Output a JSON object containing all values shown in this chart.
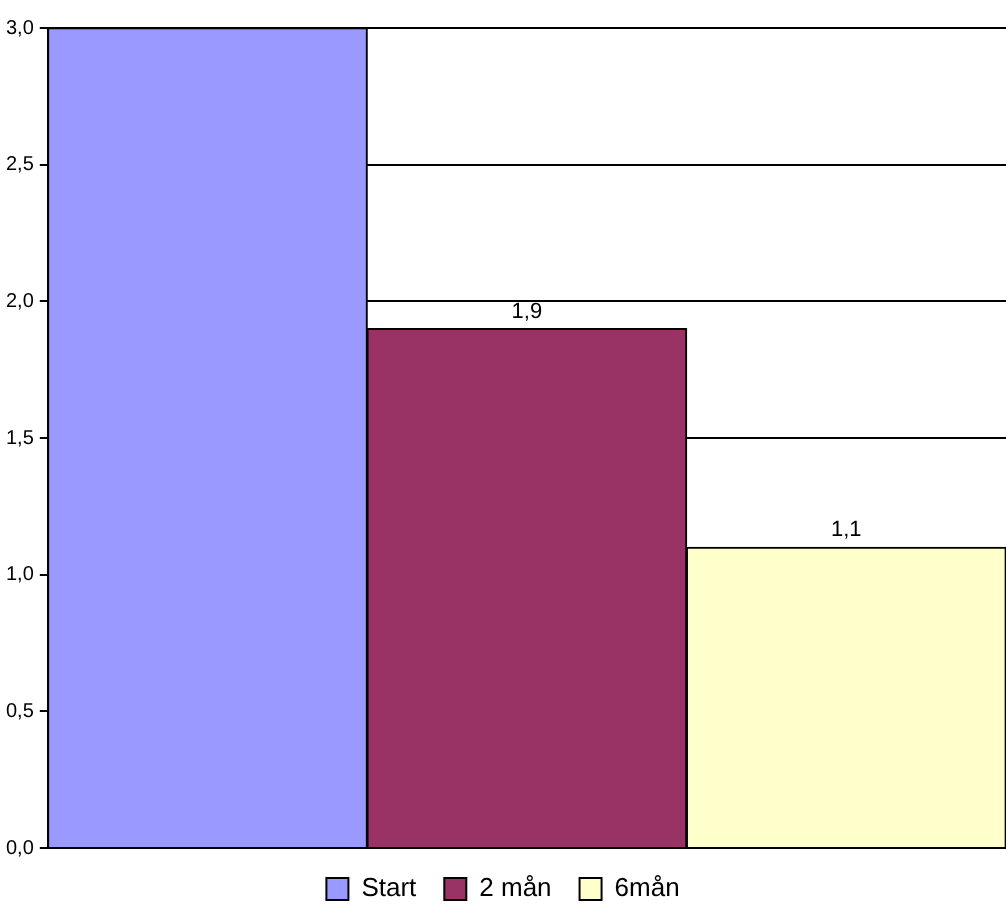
{
  "chart_data": {
    "type": "bar",
    "categories": [
      null
    ],
    "series": [
      {
        "name": "Start",
        "color": "#9999ff",
        "values": [
          3.0
        ]
      },
      {
        "name": "2 mån",
        "color": "#993366",
        "values": [
          1.9
        ],
        "value_labels": [
          "1,9"
        ]
      },
      {
        "name": "6mån",
        "color": "#ffffcc",
        "values": [
          1.1
        ],
        "value_labels": [
          "1,1"
        ]
      }
    ],
    "ylim": [
      0,
      3
    ],
    "yticks": [
      {
        "value": 0,
        "label": "0,0"
      },
      {
        "value": 0.5,
        "label": "0,5"
      },
      {
        "value": 1,
        "label": "1,0"
      },
      {
        "value": 1.5,
        "label": "1,5"
      },
      {
        "value": 2,
        "label": "2,0"
      },
      {
        "value": 2.5,
        "label": "2,5"
      },
      {
        "value": 3,
        "label": "3,0"
      }
    ],
    "grid": "y",
    "legend": "bottom"
  }
}
